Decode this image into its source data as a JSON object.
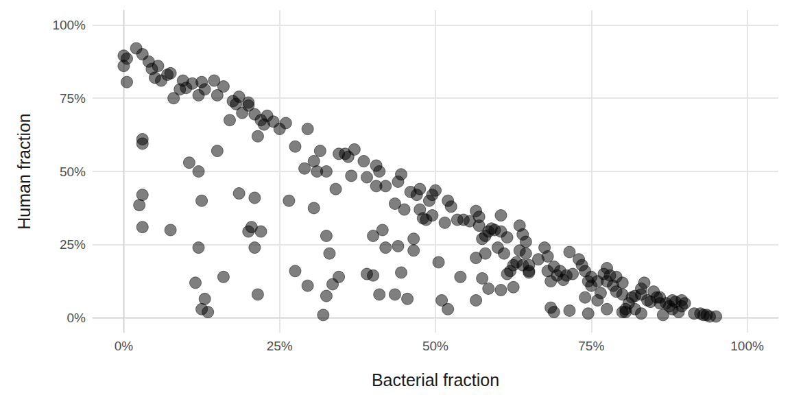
{
  "chart_data": {
    "type": "scatter",
    "x_label": "Bacterial fraction",
    "y_label": "Human fraction",
    "x": [
      0,
      0,
      0.5,
      0.5,
      2,
      3,
      4,
      4.5,
      5,
      5.5,
      6,
      7,
      7.5,
      8,
      9,
      9.5,
      10,
      11,
      12,
      12.5,
      13,
      14.5,
      15,
      16,
      17,
      17.5,
      18,
      18.5,
      19,
      20,
      20,
      21,
      21.5,
      22,
      22.5,
      23,
      24,
      25,
      26,
      27.5,
      29,
      29.5,
      30.5,
      31,
      31.5,
      32.5,
      34,
      34.5,
      35.5,
      36,
      36.5,
      37,
      38.5,
      39,
      40.5,
      40.5,
      41,
      42,
      43.5,
      44,
      44.5,
      45,
      46,
      47,
      47.5,
      47.5,
      48,
      48.5,
      49,
      49.5,
      49.5,
      50,
      51.5,
      52,
      52.5,
      53.5,
      54.5,
      55.5,
      56.5,
      56.5,
      57,
      57,
      57.5,
      58,
      58,
      58.5,
      59,
      59.5,
      60,
      60.5,
      60.5,
      61,
      61.5,
      62,
      62.5,
      63,
      63.5,
      63.5,
      64,
      64,
      64.5,
      64.5,
      65,
      65,
      66.5,
      67.5,
      68,
      68,
      68.5,
      69,
      69.5,
      70,
      70.5,
      71,
      71.5,
      72,
      73,
      73.5,
      74,
      74,
      74.5,
      75,
      75,
      76,
      76,
      76.5,
      77,
      77.5,
      77.5,
      78,
      78.5,
      79,
      79,
      80,
      80,
      80.5,
      81,
      81.5,
      82,
      82,
      83,
      83,
      83.5,
      84,
      84.5,
      85,
      85.5,
      86,
      86,
      86.5,
      87,
      87.5,
      88,
      88,
      88.5,
      89,
      89.5,
      89.5,
      90,
      91.5,
      92.5,
      93,
      93.5,
      94,
      95,
      2.5,
      3,
      3,
      3,
      3,
      7.5,
      10.5,
      12,
      11.5,
      12,
      12.5,
      12.5,
      13,
      13.5,
      15,
      16,
      18.5,
      20,
      20.5,
      21,
      21,
      21.5,
      22,
      26.5,
      27.5,
      29.5,
      30.5,
      32,
      32.5,
      32.5,
      33,
      33.5,
      34.5,
      39,
      40,
      40,
      41,
      41.5,
      42,
      43.5,
      44,
      44.5,
      45.5,
      46.5,
      46.5,
      50.5,
      51,
      52,
      54,
      56.5,
      57.5,
      58.5,
      60.5,
      61.5,
      62.5,
      65,
      68.5,
      69,
      71.5,
      74.5,
      77.5,
      80,
      80.5,
      83
    ],
    "values": [
      89.5,
      86,
      80.5,
      88.5,
      92,
      90,
      87.5,
      85,
      82,
      86,
      81,
      83,
      83.5,
      75,
      78,
      81,
      78.5,
      80,
      76,
      80.5,
      78,
      81,
      76,
      79,
      67.5,
      74,
      73,
      75.5,
      70,
      73.5,
      72.5,
      69.5,
      62,
      67.5,
      66,
      69,
      67,
      64.5,
      66.5,
      58.5,
      51,
      64.5,
      53.5,
      50,
      57,
      50,
      44,
      56,
      56,
      55,
      48.5,
      57.5,
      53.5,
      48,
      52,
      45,
      50,
      45,
      39,
      46.5,
      49,
      37,
      43,
      42,
      44,
      37,
      34,
      33.5,
      40,
      35,
      42,
      43.5,
      32.5,
      40,
      38,
      33.5,
      33.5,
      33,
      20.5,
      36.5,
      31.5,
      34.5,
      27,
      28,
      22,
      29.5,
      30.5,
      30,
      24,
      29.5,
      35,
      22,
      27.5,
      16,
      18,
      19,
      31.5,
      23,
      28.5,
      18,
      26,
      22,
      15.5,
      18,
      20,
      24,
      21,
      16,
      12.5,
      17.5,
      14.5,
      16,
      13,
      14.5,
      22.5,
      15,
      20,
      18,
      16,
      7,
      12.5,
      11,
      14,
      12.5,
      6,
      8.5,
      15,
      17,
      12.5,
      14.5,
      11,
      14,
      9,
      8,
      12,
      2,
      5,
      7,
      3,
      7.5,
      10,
      8,
      12,
      6,
      5.5,
      9,
      7,
      7,
      5,
      1,
      5,
      4,
      6,
      3,
      5.5,
      2,
      4,
      6,
      5,
      1.5,
      1.5,
      1,
      1,
      0.5,
      0.5,
      38.5,
      61,
      59.5,
      31,
      42,
      30,
      53,
      50,
      12,
      24,
      40,
      3,
      6.5,
      2,
      57,
      14,
      42.5,
      29.5,
      31,
      24,
      41,
      8,
      29.5,
      40,
      16,
      11,
      37.5,
      1,
      7.5,
      28,
      22,
      11.5,
      14,
      15,
      28,
      14.5,
      8,
      30,
      24,
      8,
      24.5,
      15.5,
      6.5,
      27,
      23,
      19,
      6,
      3,
      14,
      6,
      13.5,
      10,
      9.5,
      15,
      10.5,
      16,
      3.5,
      2,
      2.5,
      1.5,
      3,
      2,
      3,
      1.5
    ],
    "color": "#000000",
    "marker": "circle",
    "xlim": [
      -5,
      105
    ],
    "ylim": [
      -5,
      105
    ],
    "xticks": [
      {
        "value": 0,
        "label": "0%"
      },
      {
        "value": 25,
        "label": "25%"
      },
      {
        "value": 50,
        "label": "50%"
      },
      {
        "value": 75,
        "label": "75%"
      },
      {
        "value": 100,
        "label": "100%"
      }
    ],
    "yticks": [
      {
        "value": 0,
        "label": "0%"
      },
      {
        "value": 25,
        "label": "25%"
      },
      {
        "value": 50,
        "label": "50%"
      },
      {
        "value": 75,
        "label": "75%"
      },
      {
        "value": 100,
        "label": "100%"
      }
    ],
    "grid": true
  }
}
